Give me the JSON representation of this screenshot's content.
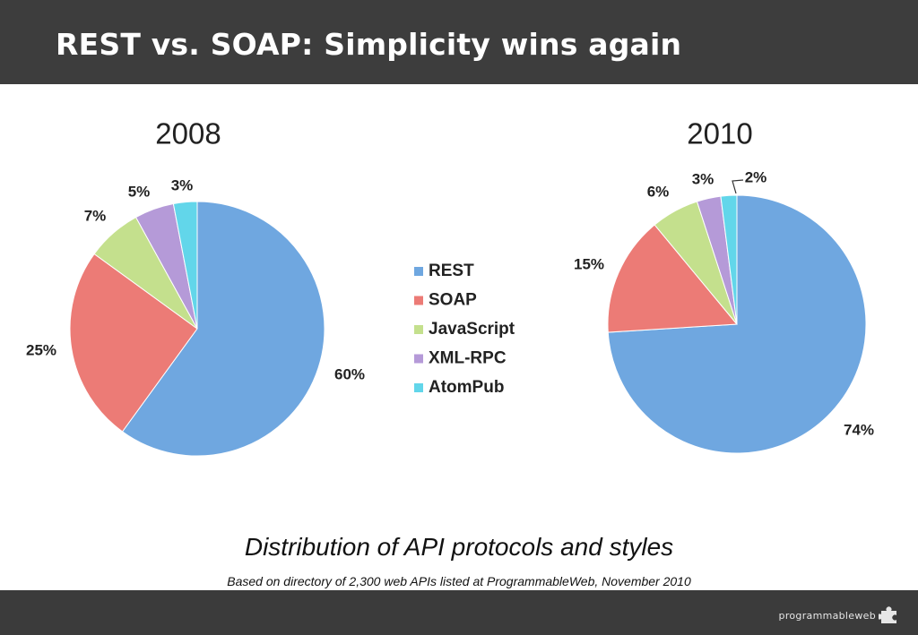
{
  "slide": {
    "title": "REST vs. SOAP: Simplicity wins again",
    "caption": "Distribution of API protocols and styles",
    "subcaption": "Based on directory of 2,300 web APIs listed at ProgrammableWeb, November 2010",
    "logo_text": "programmableweb",
    "logo_icon": "puzzle-piece-icon"
  },
  "colors": {
    "REST": "#6fa7e0",
    "SOAP": "#ec7b76",
    "JavaScript": "#c4e08d",
    "XML-RPC": "#b59ad8",
    "AtomPub": "#62d6ea",
    "header": "#3d3d3d"
  },
  "legend": [
    "REST",
    "SOAP",
    "JavaScript",
    "XML-RPC",
    "AtomPub"
  ],
  "chart_data": [
    {
      "type": "pie",
      "title": "2008",
      "categories": [
        "REST",
        "SOAP",
        "JavaScript",
        "XML-RPC",
        "AtomPub"
      ],
      "values": [
        60,
        25,
        7,
        5,
        3
      ],
      "labels": [
        "60%",
        "25%",
        "7%",
        "5%",
        "3%"
      ],
      "legend_placement": "between charts"
    },
    {
      "type": "pie",
      "title": "2010",
      "categories": [
        "REST",
        "SOAP",
        "JavaScript",
        "XML-RPC",
        "AtomPub"
      ],
      "values": [
        74,
        15,
        6,
        3,
        2
      ],
      "labels": [
        "74%",
        "15%",
        "6%",
        "3%",
        "2%"
      ],
      "legend_placement": "between charts"
    }
  ]
}
